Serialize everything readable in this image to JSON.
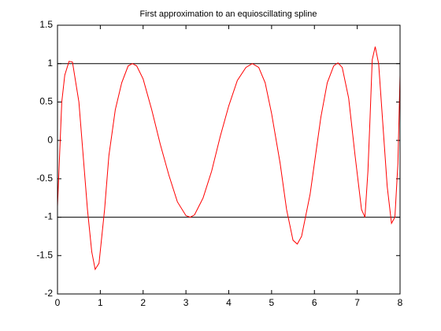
{
  "chart_data": {
    "type": "line",
    "title": "First approximation to an equioscillating spline",
    "xlim": [
      0,
      8
    ],
    "xticks": [
      0,
      1,
      2,
      3,
      4,
      5,
      6,
      7,
      8
    ],
    "ylim": [
      -2,
      1.5
    ],
    "yticks": [
      -2,
      -1.5,
      -1,
      -0.5,
      0,
      0.5,
      1,
      1.5
    ],
    "grid": false,
    "series": [
      {
        "color": "#000000",
        "x": [
          0,
          8
        ],
        "values": [
          1,
          1
        ]
      },
      {
        "color": "#000000",
        "x": [
          0,
          8
        ],
        "values": [
          -1,
          -1
        ]
      },
      {
        "color": "#ff0000",
        "x": [
          0,
          0.1,
          0.17,
          0.27,
          0.35,
          0.5,
          0.6,
          0.7,
          0.8,
          0.88,
          0.97,
          1.1,
          1.2,
          1.35,
          1.5,
          1.65,
          1.75,
          1.85,
          2.0,
          2.2,
          2.4,
          2.6,
          2.8,
          3.0,
          3.1,
          3.2,
          3.4,
          3.6,
          3.8,
          4.0,
          4.2,
          4.4,
          4.55,
          4.7,
          4.85,
          5.0,
          5.2,
          5.35,
          5.5,
          5.6,
          5.7,
          5.9,
          6.0,
          6.15,
          6.3,
          6.45,
          6.55,
          6.65,
          6.8,
          6.95,
          7.1,
          7.18,
          7.25,
          7.3,
          7.35,
          7.42,
          7.5,
          7.6,
          7.7,
          7.8,
          7.88,
          7.95,
          8.0
        ],
        "values": [
          -0.86,
          0.5,
          0.85,
          1.03,
          1.02,
          0.5,
          -0.2,
          -0.9,
          -1.45,
          -1.68,
          -1.6,
          -0.9,
          -0.2,
          0.4,
          0.75,
          0.97,
          1.0,
          0.97,
          0.8,
          0.4,
          -0.05,
          -0.45,
          -0.8,
          -0.98,
          -1.0,
          -0.97,
          -0.75,
          -0.4,
          0.05,
          0.45,
          0.78,
          0.95,
          1.0,
          0.95,
          0.75,
          0.35,
          -0.3,
          -0.9,
          -1.3,
          -1.35,
          -1.25,
          -0.7,
          -0.3,
          0.3,
          0.75,
          0.97,
          1.01,
          0.95,
          0.55,
          -0.2,
          -0.9,
          -1.0,
          -0.4,
          0.3,
          1.05,
          1.22,
          1.0,
          0.2,
          -0.6,
          -1.08,
          -1.0,
          -0.3,
          0.85
        ]
      }
    ]
  }
}
